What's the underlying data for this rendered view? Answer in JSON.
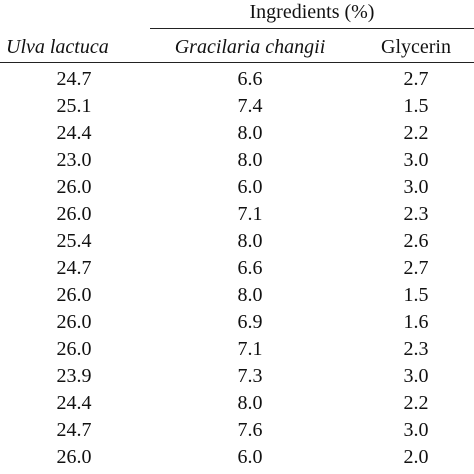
{
  "table": {
    "group_header": "Ingredients (%)",
    "columns": [
      "Ulva lactuca",
      "Gracilaria changii",
      "Glycerin"
    ],
    "rows": [
      [
        "24.7",
        "6.6",
        "2.7"
      ],
      [
        "25.1",
        "7.4",
        "1.5"
      ],
      [
        "24.4",
        "8.0",
        "2.2"
      ],
      [
        "23.0",
        "8.0",
        "3.0"
      ],
      [
        "26.0",
        "6.0",
        "3.0"
      ],
      [
        "26.0",
        "7.1",
        "2.3"
      ],
      [
        "25.4",
        "8.0",
        "2.6"
      ],
      [
        "24.7",
        "6.6",
        "2.7"
      ],
      [
        "26.0",
        "8.0",
        "1.5"
      ],
      [
        "26.0",
        "6.9",
        "1.6"
      ],
      [
        "26.0",
        "7.1",
        "2.3"
      ],
      [
        "23.9",
        "7.3",
        "3.0"
      ],
      [
        "24.4",
        "8.0",
        "2.2"
      ],
      [
        "24.7",
        "7.6",
        "3.0"
      ],
      [
        "26.0",
        "6.0",
        "2.0"
      ]
    ]
  }
}
